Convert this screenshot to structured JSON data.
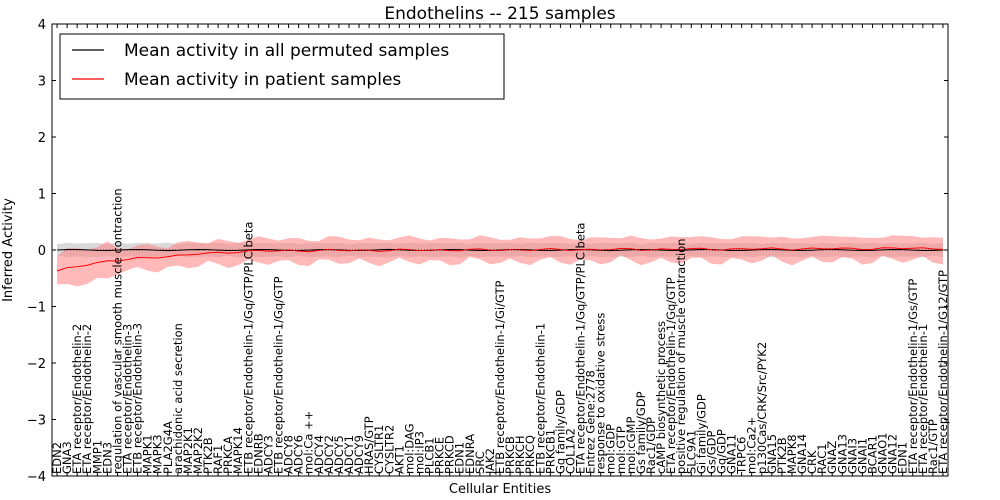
{
  "chart_data": {
    "type": "line",
    "title": "Endothelins -- 215 samples",
    "xlabel": "Cellular Entities",
    "ylabel": "Inferred Activity",
    "ylim": [
      -4,
      4
    ],
    "yticks": [
      -4,
      -3,
      -2,
      -1,
      0,
      1,
      2,
      3,
      4
    ],
    "grid": false,
    "legend_position": "top-left",
    "categories": [
      "EDN2",
      "GNA3",
      "ETA receptor/Endothelin-2",
      "ETA receptor/Endothelin-2",
      "MMP1",
      "EDN3",
      "regulation of vascular smooth muscle contraction",
      "ETA receptor/Endothelin-3",
      "ETB receptor/Endothelin-3",
      "MAPK1",
      "MAPK3",
      "PLA2G4A",
      "arachidonic acid secretion",
      "MAP2K1",
      "MAP2K2",
      "PTK2B",
      "RAF1",
      "PRKCA",
      "MAPK14",
      "ETB receptor/Endothelin-1/Gq/GTP/PLC beta",
      "EDNRB",
      "ADCY3",
      "ETB receptor/Endothelin-1/Gq/GTP",
      "ADCY8",
      "ADCY6",
      "mol:Ca ++",
      "ADCY4",
      "ADCY2",
      "ADCY5",
      "ADCY1",
      "ADCY9",
      "HRAS/GTP",
      "CYSLTR1",
      "CYSLTR2",
      "AKT1",
      "mol:DAG",
      "mol:IP3",
      "PLCB1",
      "PRKCE",
      "PRKCD",
      "EDN1",
      "EDNRA",
      "SRC",
      "JAK2",
      "ETB receptor/Endothelin-1/Gi/GTP",
      "PRKCB",
      "PRKCH",
      "PRKCQ",
      "ETB receptor/Endothelin-1",
      "PRKCB1",
      "Gq family/GDP",
      "COL1A2",
      "ETA receptor/Endothelin-1/Gq/GTP/PLC beta",
      "Entrez Gene:2778",
      "response to oxidative stress",
      "mol:GDP",
      "mol:GTP",
      "mol:cGMP",
      "Gs family/GDP",
      "Rac1/GDP",
      "cAMP biosynthetic process",
      "ETA receptor/Endothelin-1/Gq/GTP",
      "positive regulation of muscle contraction",
      "SLC9A1",
      "Gi family/GDP",
      "Gs/GDP",
      "Gq/GDP",
      "GNA11",
      "TRPC6",
      "mol:Ca2+",
      "p130Cas/CRK/Src/PYK2",
      "GNA15",
      "PTK2B",
      "MAPK8",
      "GNA14",
      "CRK",
      "RAC1",
      "GNAZ",
      "GNA13",
      "GNAI3",
      "GNAI1",
      "BCAR1",
      "GNAO1",
      "GNA12",
      "EDN1",
      "ETA receptor/Endothelin-1/Gs/GTP",
      "ETA receptor/Endothelin-1",
      "Rac1/GTP",
      "ETA receptor/Endothelin-1/G12/GTP"
    ],
    "series": [
      {
        "name": "Mean activity in all permuted samples",
        "color": "#000000",
        "band_color": "#bfbfbf",
        "values": "flat at approximately 0 for all entities",
        "mean": 0.0,
        "band_halfwidth": 0.1
      },
      {
        "name": "Mean activity in patient samples",
        "color": "#ff0000",
        "band_color": "#ff8080",
        "points": [
          [
            0,
            -0.38
          ],
          [
            1,
            -0.33
          ],
          [
            2,
            -0.29
          ],
          [
            3,
            -0.25
          ],
          [
            4,
            -0.22
          ],
          [
            5,
            -0.2
          ],
          [
            6,
            -0.19
          ],
          [
            7,
            -0.17
          ],
          [
            8,
            -0.15
          ],
          [
            9,
            -0.14
          ],
          [
            10,
            -0.12
          ],
          [
            11,
            -0.11
          ],
          [
            12,
            -0.1
          ],
          [
            13,
            -0.09
          ],
          [
            14,
            -0.07
          ],
          [
            15,
            -0.06
          ],
          [
            16,
            -0.05
          ],
          [
            17,
            -0.04
          ],
          [
            18,
            -0.03
          ],
          [
            19,
            -0.02
          ],
          [
            20,
            -0.02
          ],
          [
            24,
            -0.01
          ],
          [
            40,
            0.0
          ],
          [
            88,
            0.03
          ]
        ],
        "band_halfwidth": 0.15
      }
    ]
  }
}
